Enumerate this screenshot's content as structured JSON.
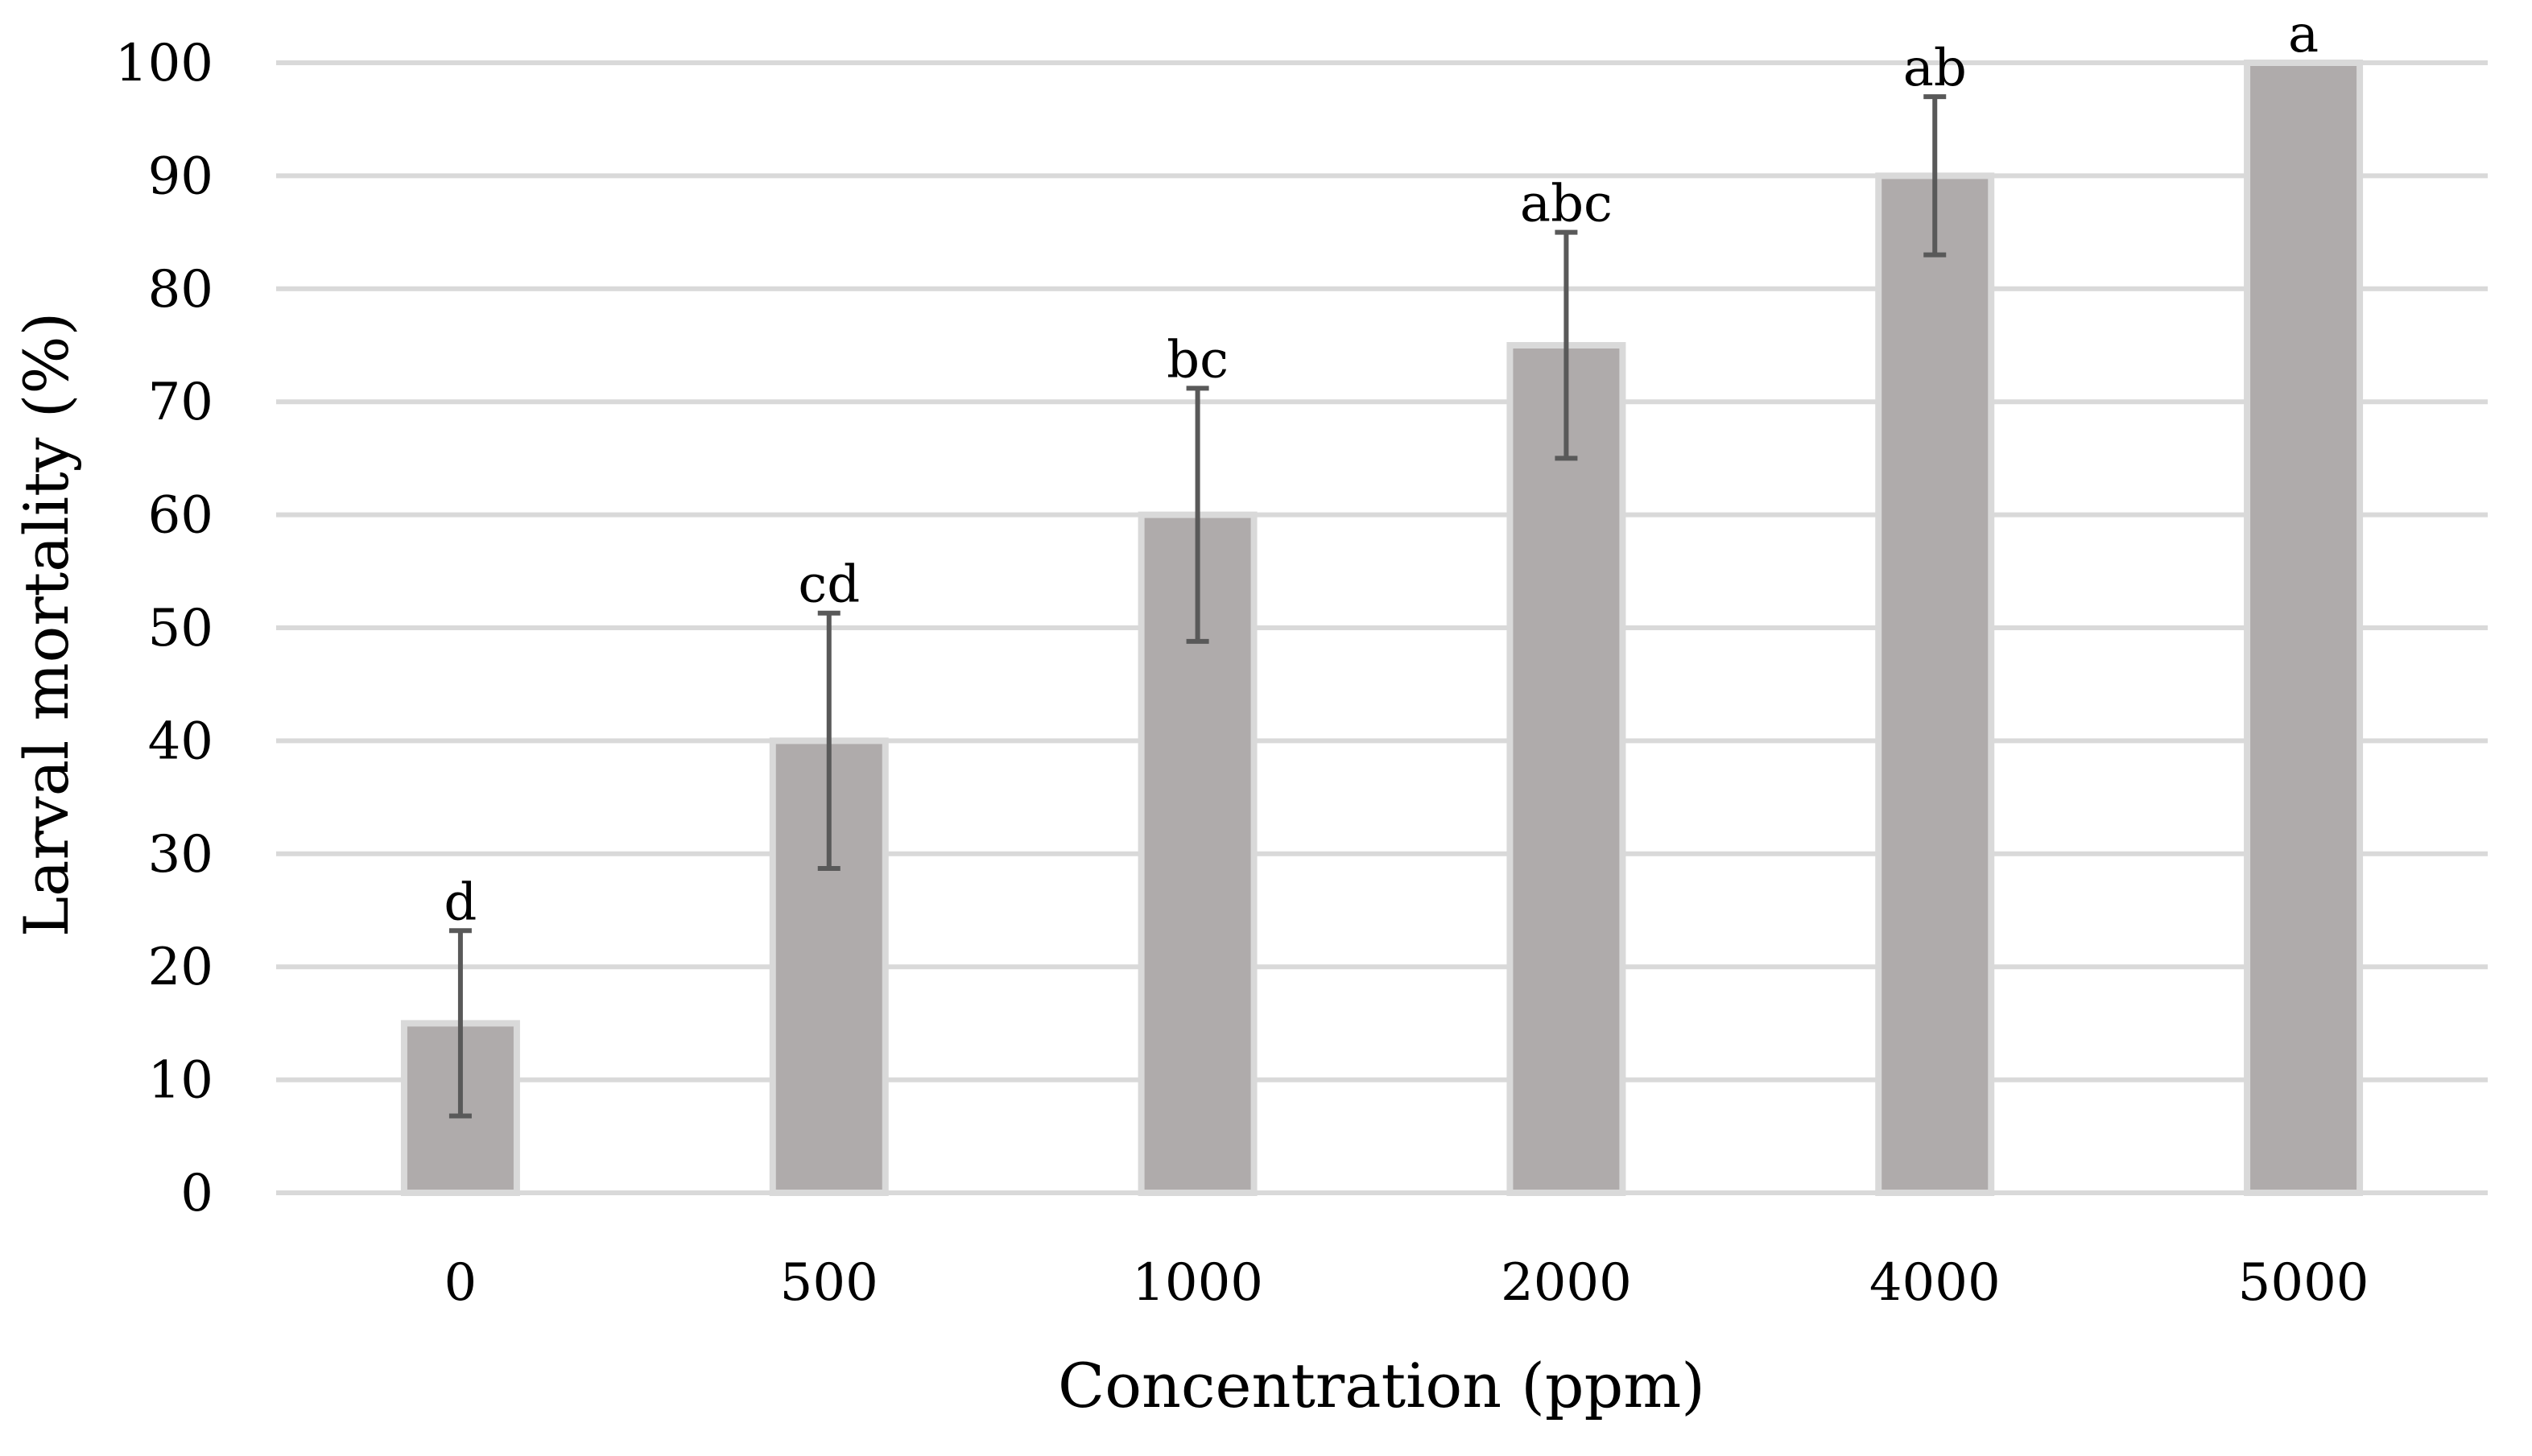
{
  "chart_data": {
    "type": "bar",
    "title": "",
    "xlabel": "Concentration (ppm)",
    "ylabel": "Larval mortality (%)",
    "ylim": [
      0,
      100
    ],
    "yticks": [
      "0",
      "10",
      "20",
      "30",
      "40",
      "50",
      "60",
      "70",
      "80",
      "90",
      "100"
    ],
    "grid": true,
    "categories": [
      "0",
      "500",
      "1000",
      "2000",
      "4000",
      "5000"
    ],
    "values": [
      15,
      40,
      60,
      75,
      90,
      100
    ],
    "errors": [
      8.2,
      11.3,
      11.2,
      10,
      7,
      0
    ],
    "letters": [
      "d",
      "cd",
      "bc",
      "abc",
      "ab",
      "a"
    ],
    "colors": {
      "bar_fill": "#afabab",
      "bar_edge": "#d9d9d9",
      "grid": "#d9d9d9",
      "error_bar": "#595959"
    }
  }
}
